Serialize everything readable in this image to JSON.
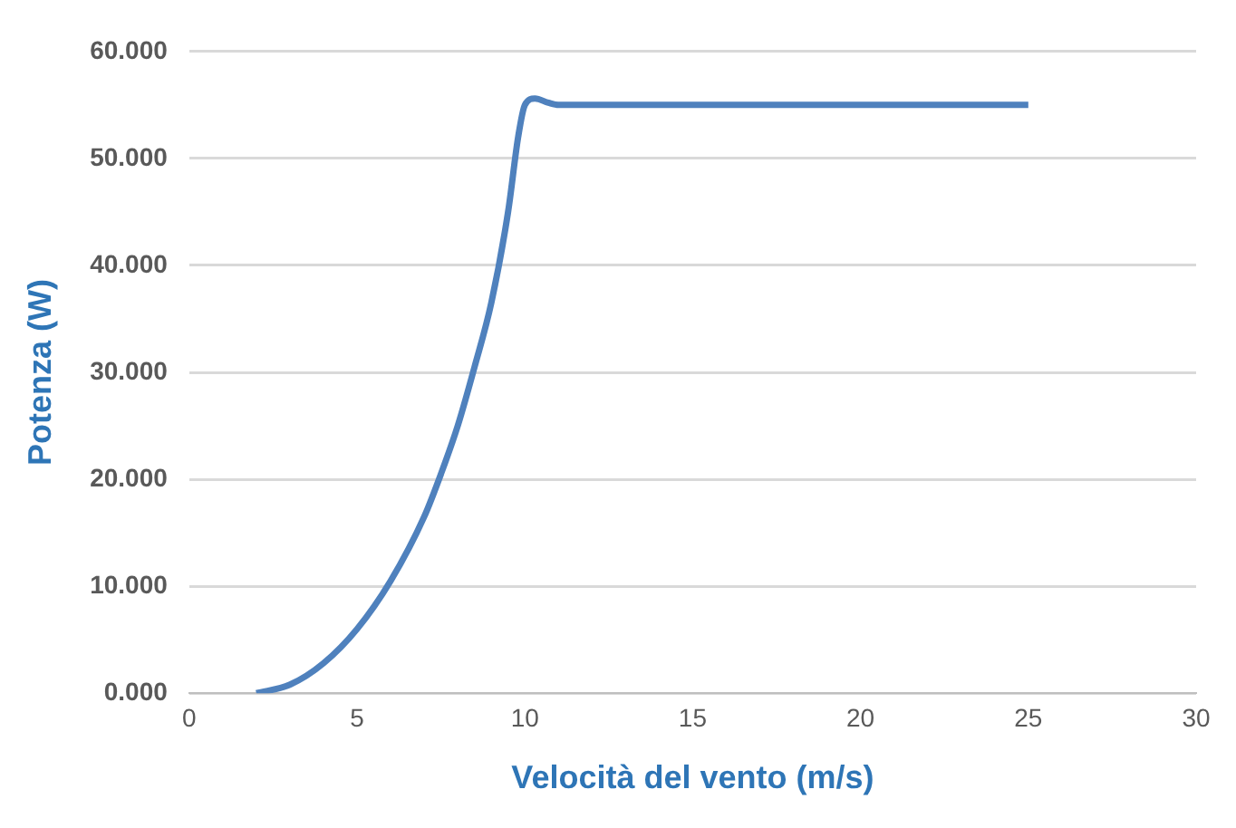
{
  "chart_data": {
    "type": "line",
    "xlabel": "Velocità del vento (m/s)",
    "ylabel": "Potenza (W)",
    "x": [
      2,
      3,
      4,
      5,
      6,
      7,
      7.5,
      8,
      8.5,
      9,
      9.5,
      9.8,
      10,
      10.3,
      10.7,
      11,
      15,
      20,
      25
    ],
    "series": [
      {
        "color": "#4f81bd",
        "values": [
          0,
          0.8,
          2.8,
          6,
          10.5,
          16.5,
          20.5,
          25,
          30.5,
          36.5,
          45,
          52,
          55,
          55.6,
          55.2,
          55,
          55,
          55,
          55
        ]
      }
    ],
    "xlim": [
      0,
      30
    ],
    "xticks": [
      0,
      5,
      10,
      15,
      20,
      25,
      30
    ],
    "ylim": [
      0,
      60
    ],
    "yticks": [
      {
        "value": 0,
        "label": "0.000"
      },
      {
        "value": 10,
        "label": "10.000"
      },
      {
        "value": 20,
        "label": "20.000"
      },
      {
        "value": 30,
        "label": "30.000"
      },
      {
        "value": 40,
        "label": "40.000"
      },
      {
        "value": 50,
        "label": "50.000"
      },
      {
        "value": 60,
        "label": "60.000"
      }
    ],
    "grid": "y",
    "legend": false,
    "marker": "none",
    "line_style": "solid"
  }
}
